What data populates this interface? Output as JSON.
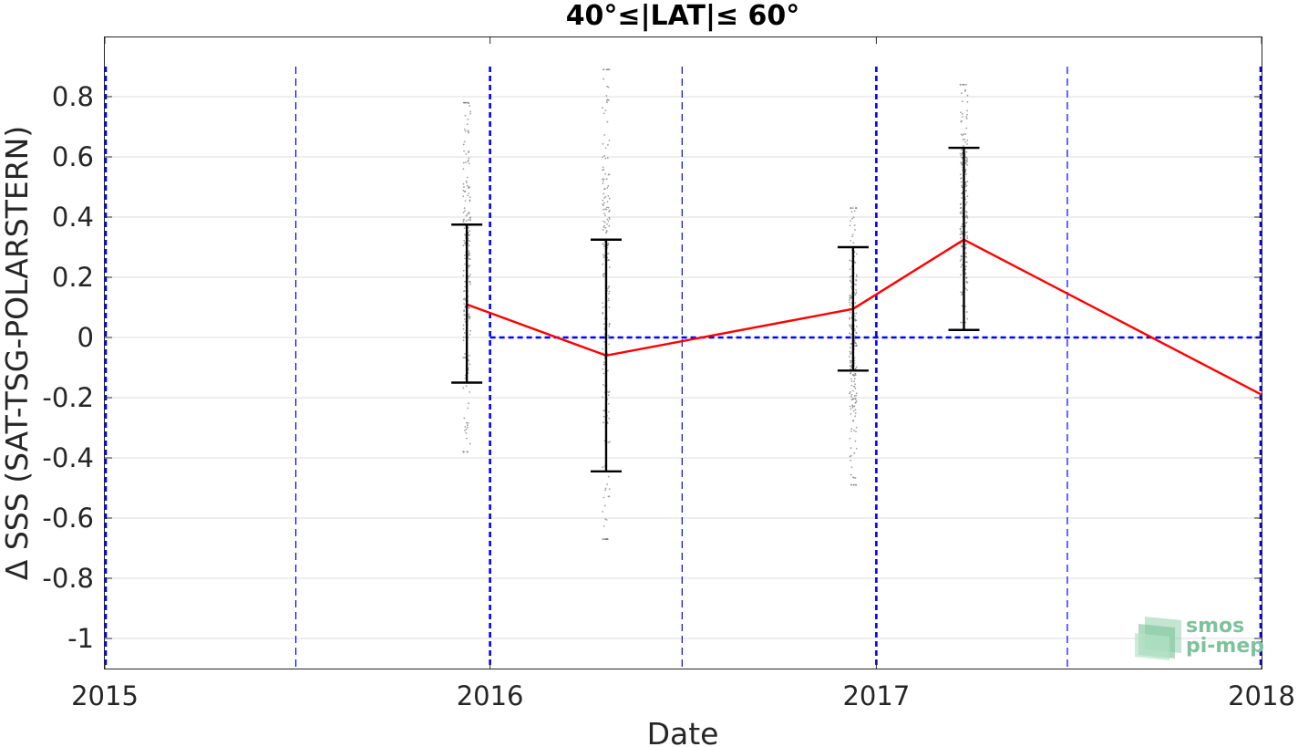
{
  "chart_data": {
    "type": "line",
    "title": "40°≤|LAT|≤ 60°",
    "xlabel": "Date",
    "ylabel": "Δ SSS (SAT-TSG-POLARSTERN)",
    "xlim": [
      "2015-01-01",
      "2018-01-01"
    ],
    "ylim": [
      -1.1,
      1.0
    ],
    "x_ticks": [
      "2015",
      "2016",
      "2017",
      "2018"
    ],
    "y_ticks": [
      "0.8",
      "0.6",
      "0.4",
      "0.2",
      "0",
      "-0.2",
      "-0.4",
      "-0.6",
      "-0.8",
      "-1"
    ],
    "grid": "horizontal",
    "series": [
      {
        "style": "red line with black error bars",
        "color": "#ff0000",
        "points": [
          {
            "x": "2015-12-10",
            "y": 0.11,
            "low": -0.15,
            "high": 0.375
          },
          {
            "x": "2016-04-20",
            "y": -0.06,
            "low": -0.445,
            "high": 0.325
          },
          {
            "x": "2016-12-10",
            "y": 0.095,
            "low": -0.11,
            "high": 0.3
          },
          {
            "x": "2017-03-25",
            "y": 0.325,
            "low": 0.025,
            "high": 0.63
          },
          {
            "x": "2018-01-01",
            "y": -0.19
          }
        ]
      }
    ],
    "scatter_clusters": [
      {
        "x": "2015-12-10",
        "y_range": [
          -0.38,
          0.78
        ],
        "color": "#7f7f7f"
      },
      {
        "x": "2016-04-20",
        "y_range": [
          -0.67,
          0.89
        ],
        "color": "#7f7f7f"
      },
      {
        "x": "2016-12-10",
        "y_range": [
          -0.49,
          0.43
        ],
        "color": "#7f7f7f"
      },
      {
        "x": "2017-03-25",
        "y_range": [
          0.05,
          0.84
        ],
        "color": "#7f7f7f"
      }
    ],
    "reference_lines": {
      "horizontal_zero_from": "2016-01-01",
      "year_lines": [
        "2015-01-01",
        "2016-01-01",
        "2017-01-01",
        "2018-01-01"
      ],
      "half_year_lines": [
        "2015-07-01",
        "2016-07-01",
        "2017-07-01"
      ],
      "color": "#0000ff"
    }
  },
  "logo": {
    "line1": "smos",
    "line2": "pi-mep"
  },
  "colors": {
    "mean_line": "#ff0000",
    "error_bar": "#000000",
    "reference": "#0000ff",
    "scatter": "#7f7f7f",
    "grid": "#dcdcdc",
    "logo": "#7cc39a"
  }
}
